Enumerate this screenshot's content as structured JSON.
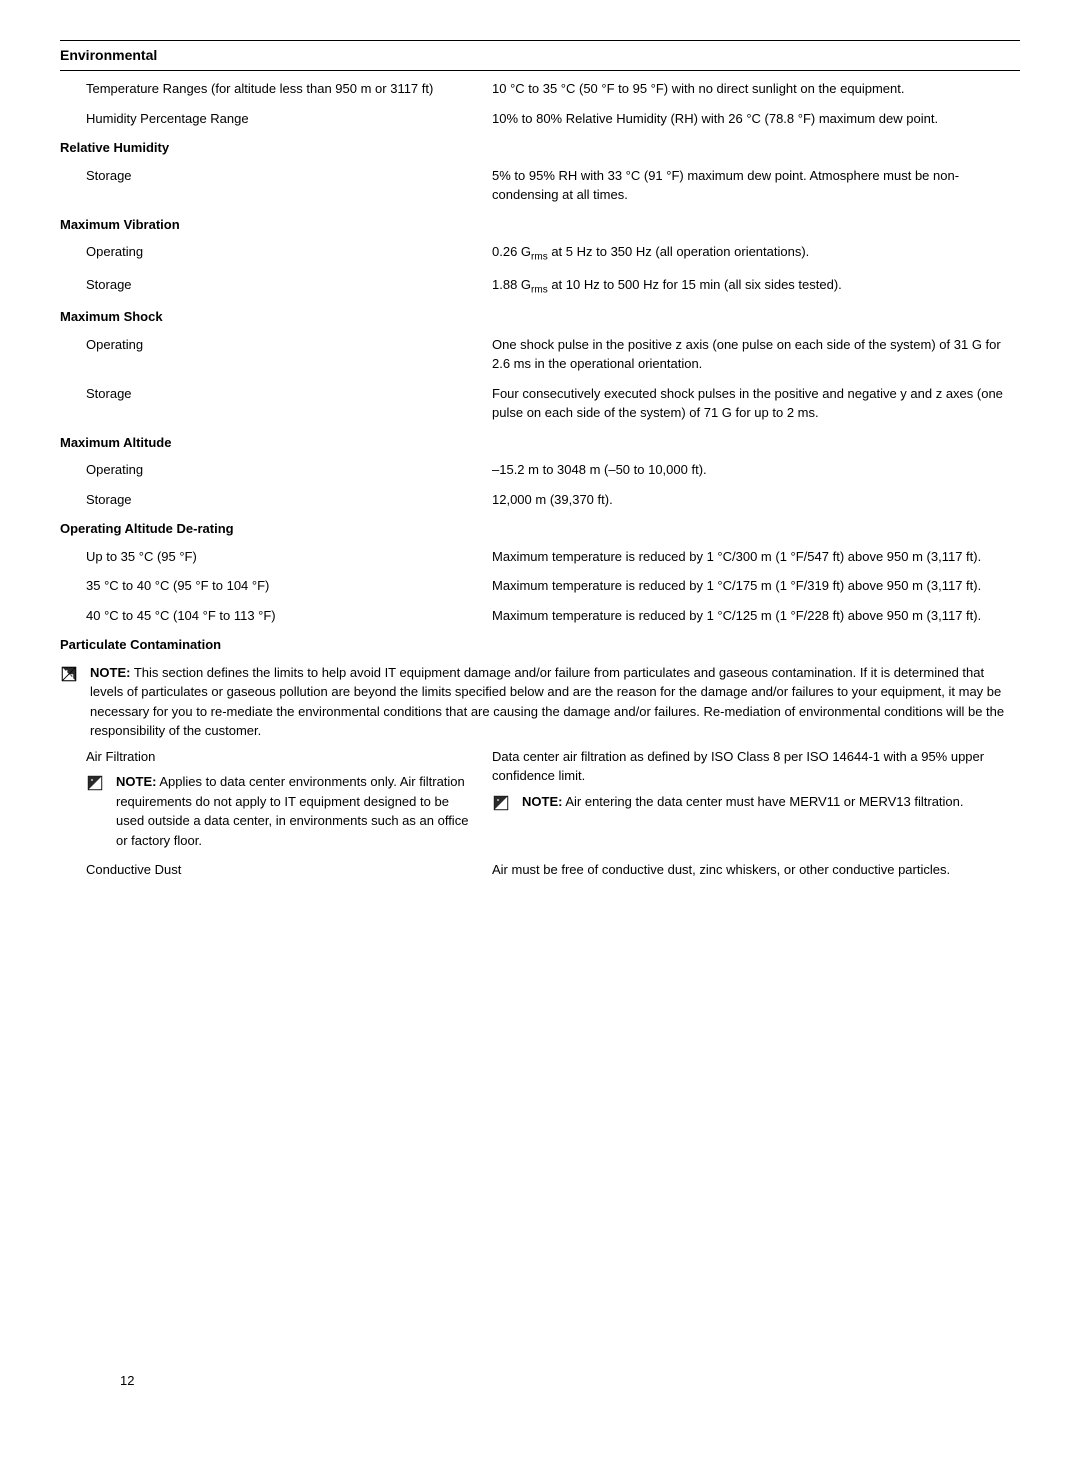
{
  "heading": "Environmental",
  "rows": [
    {
      "left": "Temperature Ranges (for altitude less than 950 m or 3117 ft)",
      "right": "10 °C to 35 °C (50 °F to 95 °F) with no direct sunlight on the equipment."
    },
    {
      "left": "Humidity Percentage Range",
      "right": "10% to 80% Relative Humidity (RH) with 26 °C (78.8 °F) maximum dew point."
    }
  ],
  "sections": [
    {
      "title": "Relative Humidity",
      "rows": [
        {
          "left": "Storage",
          "right": "5% to 95% RH with 33 °C (91 °F) maximum dew point. Atmosphere must be non-condensing at all times."
        }
      ]
    },
    {
      "title": "Maximum Vibration",
      "rows": [
        {
          "left": "Operating",
          "rightHtml": "0.26 G<sub>rms</sub> at 5 Hz to 350 Hz (all operation orientations)."
        },
        {
          "left": "Storage",
          "rightHtml": "1.88 G<sub>rms</sub> at 10 Hz to 500 Hz for 15 min (all six sides tested)."
        }
      ]
    },
    {
      "title": "Maximum Shock",
      "rows": [
        {
          "left": "Operating",
          "right": "One shock pulse in the positive z axis (one pulse on each side of the system) of 31 G for 2.6 ms in the operational orientation."
        },
        {
          "left": "Storage",
          "right": "Four consecutively executed shock pulses in the positive and negative y and z axes (one pulse on each side of the system) of 71 G for up to 2 ms."
        }
      ]
    },
    {
      "title": "Maximum Altitude",
      "rows": [
        {
          "left": "Operating",
          "right": "–15.2 m to 3048 m (–50 to 10,000 ft)."
        },
        {
          "left": "Storage",
          "right": "12,000 m (39,370 ft)."
        }
      ]
    },
    {
      "title": "Operating Altitude De-rating",
      "rows": [
        {
          "left": "Up to 35 °C (95 °F)",
          "right": "Maximum temperature is reduced by 1 °C/300 m (1 °F/547 ft) above 950 m (3,117 ft)."
        },
        {
          "left": "35 °C to 40 °C (95 °F to 104 °F)",
          "right": "Maximum temperature is reduced by 1 °C/175 m (1 °F/319 ft) above 950 m (3,117 ft)."
        },
        {
          "left": "40 °C to 45 °C (104 °F to 113 °F)",
          "right": "Maximum temperature is reduced by 1 °C/125 m (1 °F/228 ft) above 950 m (3,117 ft)."
        }
      ]
    }
  ],
  "particulate": {
    "title": "Particulate Contamination",
    "noteLabel": "NOTE:",
    "mainNote": " This section defines the limits to help avoid IT equipment damage and/or failure from particulates and gaseous contamination. If it is determined that levels of particulates or gaseous pollution are beyond the limits specified below and are the reason for the damage and/or failures to your equipment, it may be necessary for you to re-mediate the environmental conditions that are causing the damage and/or failures. Re-mediation of environmental conditions will be the responsibility of the customer.",
    "airFiltration": {
      "leftTitle": "Air Filtration",
      "leftNoteLabel": "NOTE:",
      "leftNoteText": " Applies to data center environments only. Air filtration requirements do not apply to IT equipment designed to be used outside a data center, in environments such as an office or factory floor.",
      "rightText": "Data center air filtration as defined by ISO Class 8 per ISO 14644-1 with a 95% upper confidence limit.",
      "rightNoteLabel": "NOTE:",
      "rightNoteText": " Air entering the data center must have MERV11 or MERV13 filtration."
    },
    "conductiveDust": {
      "left": "Conductive Dust",
      "right": "Air must be free of conductive dust, zinc whiskers, or other conductive particles."
    }
  },
  "pageNumber": "12",
  "colors": {
    "text": "#000000",
    "background": "#ffffff",
    "border": "#000000",
    "iconFill": "#2a2a2a"
  }
}
